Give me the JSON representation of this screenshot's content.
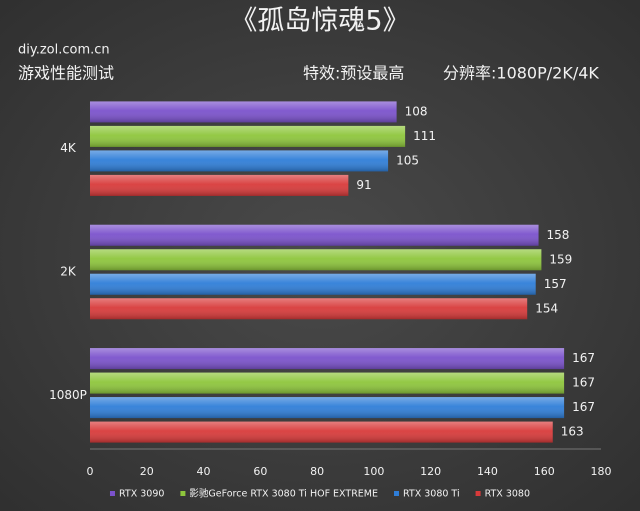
{
  "chart_data": {
    "type": "hbar",
    "title": "《孤岛惊魂5》",
    "source": "diy.zol.com.cn",
    "subtitle": "游戏性能测试",
    "settings": "特效:预设最高",
    "resolution": "分辨率:1080P/2K/4K",
    "categories": [
      "4K",
      "2K",
      "1080P"
    ],
    "series": [
      {
        "name": "RTX 3090",
        "color": "#7b52cc",
        "values": [
          108,
          158,
          167
        ]
      },
      {
        "name": "影驰GeForce RTX 3080 Ti HOF EXTREME",
        "color": "#8ec63c",
        "values": [
          111,
          159,
          167
        ]
      },
      {
        "name": "RTX 3080 Ti",
        "color": "#2f7ed8",
        "values": [
          105,
          157,
          167
        ]
      },
      {
        "name": "RTX 3080",
        "color": "#d83a3a",
        "values": [
          91,
          154,
          163
        ]
      }
    ],
    "xlim": [
      0,
      180
    ],
    "xticks": [
      0,
      20,
      40,
      60,
      80,
      100,
      120,
      140,
      160,
      180
    ],
    "grid": false,
    "legend": "bottom"
  }
}
